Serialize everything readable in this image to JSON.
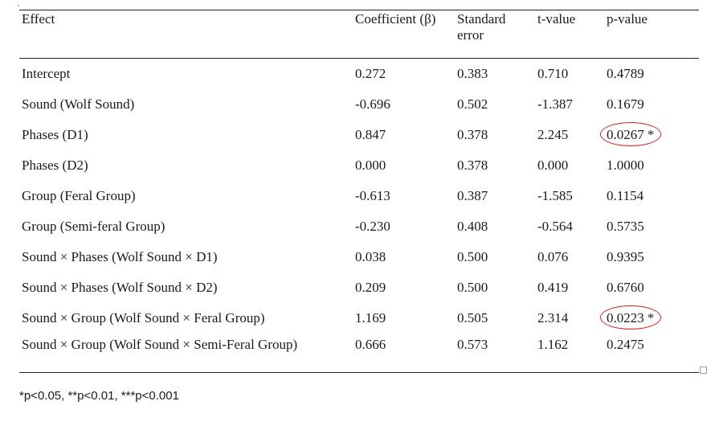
{
  "table": {
    "headers": {
      "effect": "Effect",
      "coefficient": "Coefficient (β)",
      "standard_error_line1": "Standard",
      "standard_error_line2": "error",
      "t_value": "t-value",
      "p_value": "p-value"
    },
    "rows": [
      {
        "effect": "Intercept",
        "coef": "0.272",
        "se": "0.383",
        "t": "0.710",
        "p": "0.4789",
        "star": ""
      },
      {
        "effect": "Sound (Wolf Sound)",
        "coef": "-0.696",
        "se": "0.502",
        "t": "-1.387",
        "p": "0.1679",
        "star": ""
      },
      {
        "effect": "Phases (D1)",
        "coef": "0.847",
        "se": "0.378",
        "t": "2.245",
        "p": "0.0267",
        "star": "*"
      },
      {
        "effect": "Phases (D2)",
        "coef": "0.000",
        "se": "0.378",
        "t": "0.000",
        "p": "1.0000",
        "star": ""
      },
      {
        "effect": "Group (Feral Group)",
        "coef": "-0.613",
        "se": "0.387",
        "t": "-1.585",
        "p": "0.1154",
        "star": ""
      },
      {
        "effect": "Group (Semi-feral Group)",
        "coef": "-0.230",
        "se": "0.408",
        "t": "-0.564",
        "p": "0.5735",
        "star": ""
      },
      {
        "effect": "Sound × Phases (Wolf Sound × D1)",
        "coef": "0.038",
        "se": "0.500",
        "t": "0.076",
        "p": "0.9395",
        "star": ""
      },
      {
        "effect": "Sound × Phases (Wolf Sound × D2)",
        "coef": "0.209",
        "se": "0.500",
        "t": "0.419",
        "p": "0.6760",
        "star": ""
      },
      {
        "effect": "Sound × Group (Wolf Sound × Feral Group)",
        "coef": "1.169",
        "se": "0.505",
        "t": "2.314",
        "p": "0.0223",
        "star": "*"
      },
      {
        "effect": "Sound × Group (Wolf Sound × Semi-Feral Group)",
        "coef": "0.666",
        "se": "0.573",
        "t": "1.162",
        "p": "0.2475",
        "star": ""
      }
    ]
  },
  "footnote": "*p<0.05, **p<0.01, ***p<0.001",
  "annotation_color": "#e02020"
}
